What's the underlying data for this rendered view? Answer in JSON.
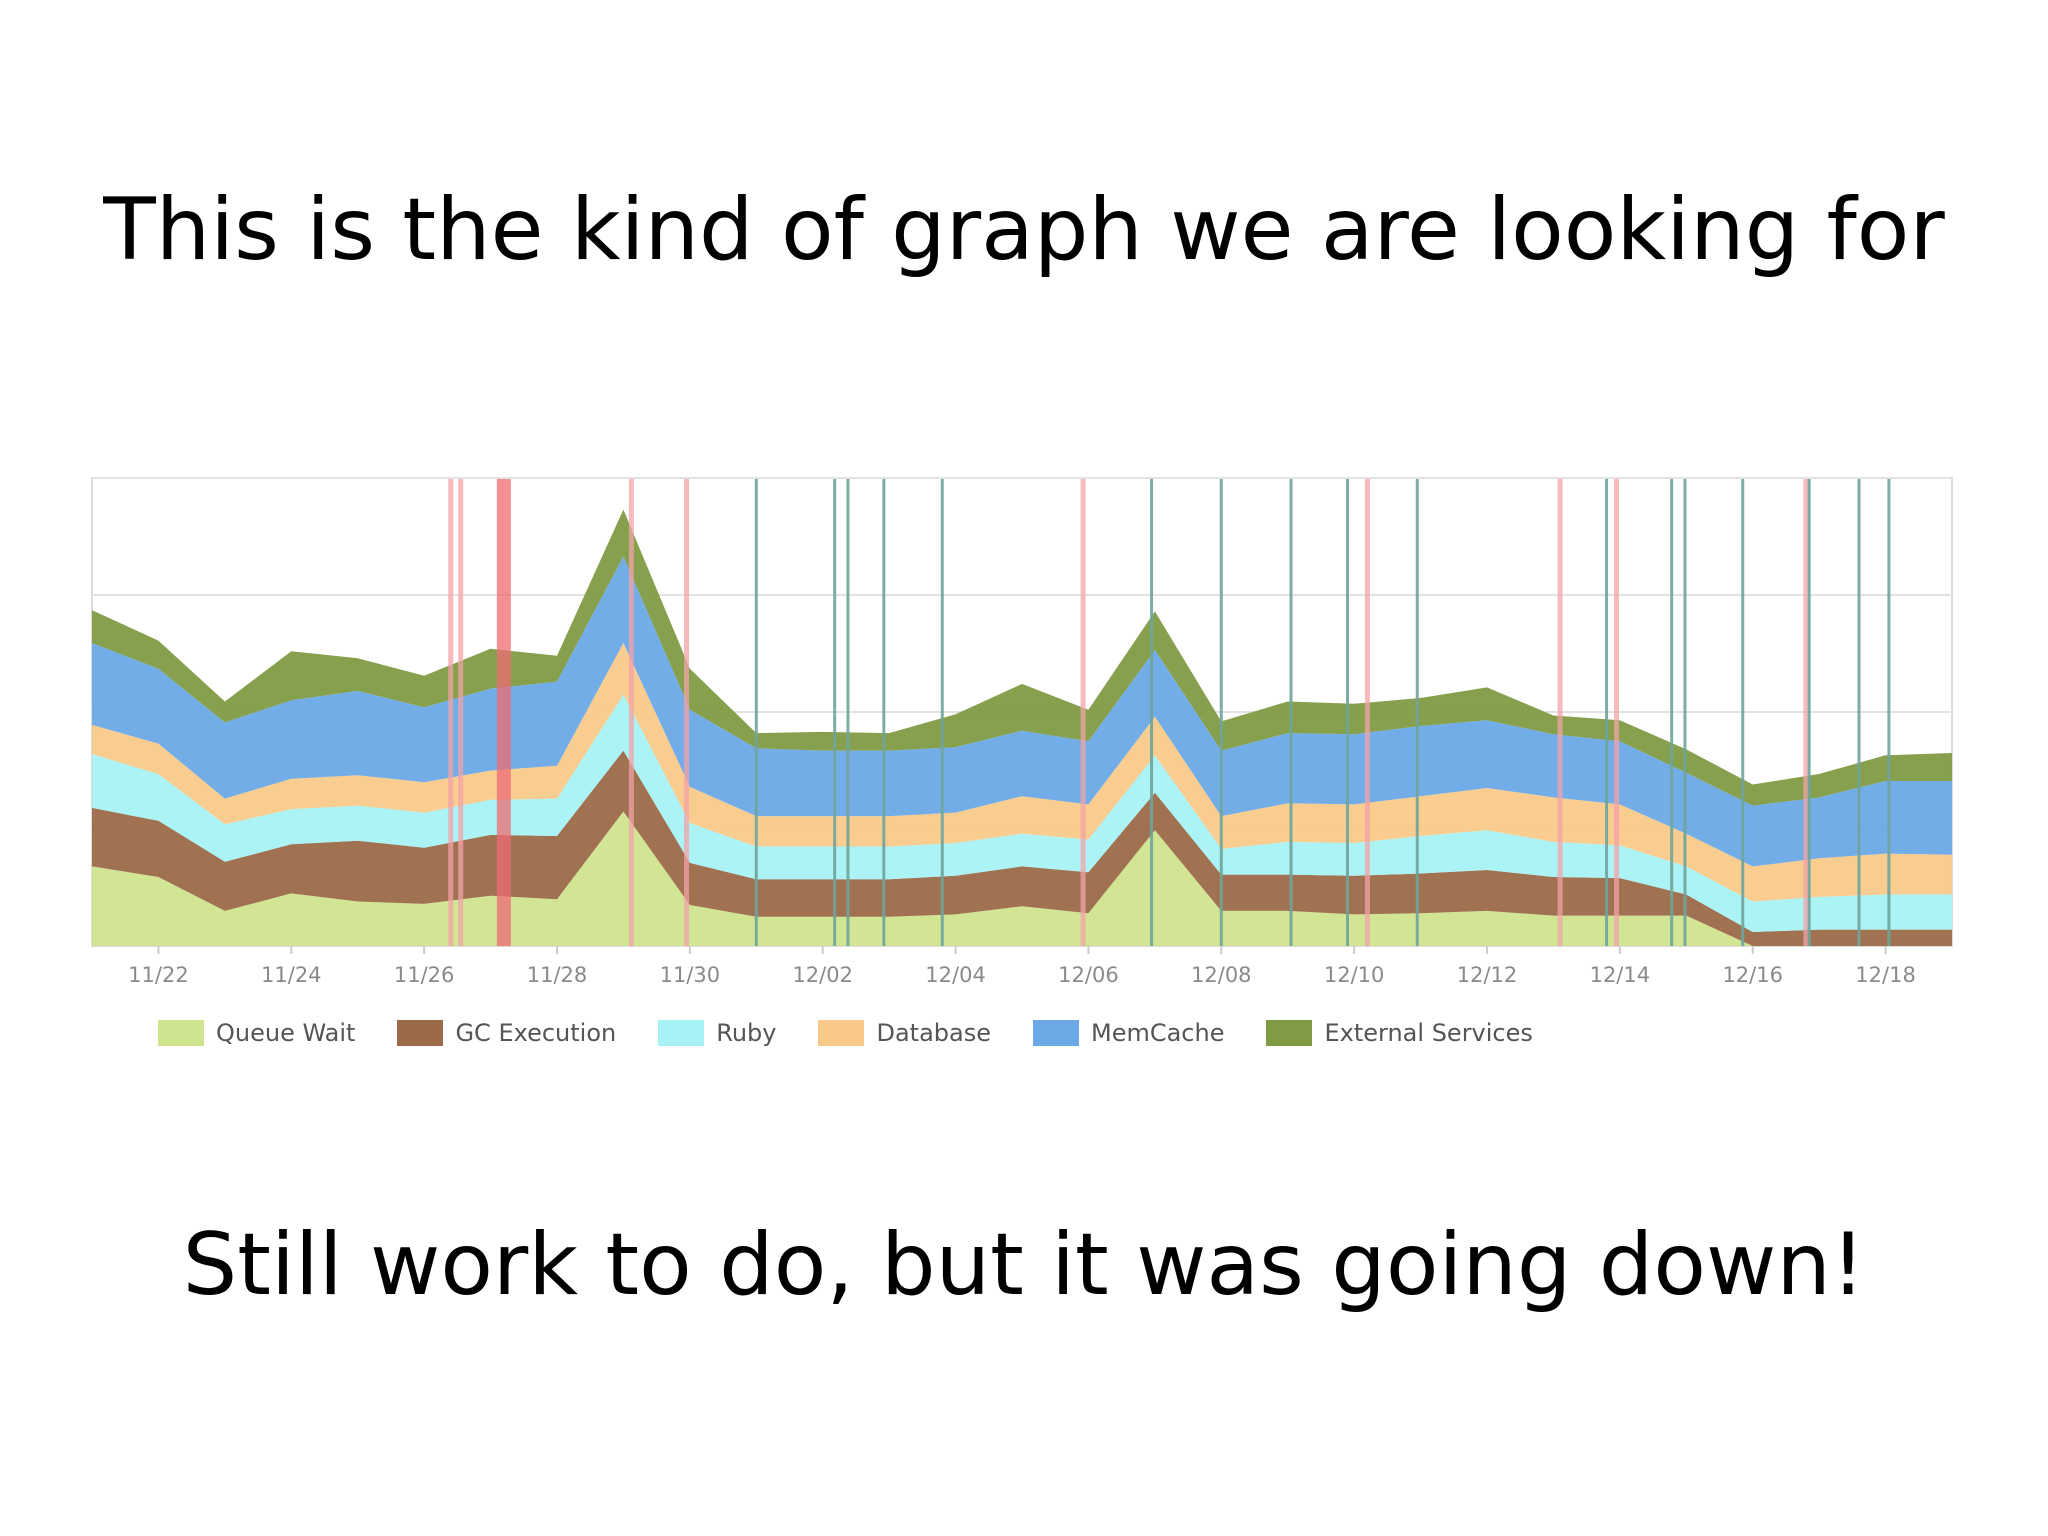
{
  "slide": {
    "title": "This is the kind of graph we are looking for",
    "caption": "Still work to do, but it was going down!"
  },
  "chart_data": {
    "type": "area",
    "stacked": true,
    "x": [
      "11/21",
      "11/22",
      "11/23",
      "11/24",
      "11/25",
      "11/26",
      "11/27",
      "11/28",
      "11/29",
      "11/30",
      "12/01",
      "12/02",
      "12/03",
      "12/04",
      "12/05",
      "12/06",
      "12/07",
      "12/08",
      "12/09",
      "12/10",
      "12/11",
      "12/12",
      "12/13",
      "12/14",
      "12/15",
      "12/16",
      "12/17",
      "12/18",
      "12/19"
    ],
    "x_tick_labels": [
      "11/22",
      "11/24",
      "11/26",
      "11/28",
      "11/30",
      "12/02",
      "12/04",
      "12/06",
      "12/08",
      "12/10",
      "12/12",
      "12/14",
      "12/16",
      "12/18"
    ],
    "y_grid_values": [
      100,
      200,
      300,
      400
    ],
    "ylim": [
      0,
      400
    ],
    "grid": true,
    "legend_position": "bottom-left",
    "series": [
      {
        "name": "Queue Wait",
        "color": "#cfe48f",
        "values": [
          68,
          59,
          30,
          45,
          38,
          36,
          43,
          40,
          115,
          35,
          25,
          25,
          25,
          27,
          34,
          28,
          99,
          30,
          30,
          27,
          28,
          30,
          26,
          26,
          26,
          0,
          0,
          0,
          0
        ]
      },
      {
        "name": "GC Execution",
        "color": "#9b6a48",
        "values": [
          50,
          48,
          42,
          42,
          52,
          48,
          52,
          54,
          52,
          36,
          32,
          32,
          32,
          33,
          34,
          35,
          32,
          31,
          31,
          33,
          34,
          35,
          33,
          32,
          18,
          12,
          14,
          14,
          14
        ]
      },
      {
        "name": "Ruby",
        "color": "#a6f2f4",
        "values": [
          46,
          40,
          32,
          30,
          30,
          30,
          30,
          32,
          48,
          34,
          28,
          28,
          28,
          28,
          28,
          28,
          32,
          22,
          28,
          28,
          32,
          34,
          30,
          28,
          24,
          26,
          28,
          30,
          30
        ]
      },
      {
        "name": "Database",
        "color": "#f9c98a",
        "values": [
          25,
          26,
          22,
          26,
          26,
          26,
          25,
          28,
          44,
          31,
          26,
          26,
          26,
          26,
          32,
          30,
          33,
          28,
          33,
          33,
          34,
          36,
          38,
          35,
          28,
          30,
          33,
          35,
          34
        ]
      },
      {
        "name": "MemCache",
        "color": "#6aa9e6",
        "values": [
          70,
          64,
          65,
          67,
          72,
          64,
          70,
          72,
          74,
          66,
          58,
          56,
          56,
          56,
          56,
          54,
          57,
          56,
          60,
          60,
          60,
          58,
          54,
          54,
          52,
          52,
          52,
          62,
          63
        ]
      },
      {
        "name": "External Services",
        "color": "#7f9b43",
        "values": [
          28,
          24,
          18,
          42,
          28,
          27,
          34,
          22,
          40,
          35,
          13,
          16,
          15,
          28,
          40,
          27,
          33,
          25,
          27,
          26,
          24,
          28,
          16,
          18,
          20,
          18,
          20,
          22,
          24
        ]
      }
    ],
    "event_markers": [
      {
        "x": 5.4,
        "kind": "red"
      },
      {
        "x": 5.55,
        "kind": "red"
      },
      {
        "x": 6.2,
        "kind": "red-bold"
      },
      {
        "x": 8.12,
        "kind": "red"
      },
      {
        "x": 8.95,
        "kind": "red"
      },
      {
        "x": 10.0,
        "kind": "teal"
      },
      {
        "x": 11.18,
        "kind": "teal"
      },
      {
        "x": 11.38,
        "kind": "teal"
      },
      {
        "x": 11.92,
        "kind": "teal"
      },
      {
        "x": 12.8,
        "kind": "teal"
      },
      {
        "x": 14.92,
        "kind": "red"
      },
      {
        "x": 15.95,
        "kind": "teal"
      },
      {
        "x": 17.0,
        "kind": "teal"
      },
      {
        "x": 18.05,
        "kind": "teal"
      },
      {
        "x": 18.9,
        "kind": "teal"
      },
      {
        "x": 19.2,
        "kind": "red"
      },
      {
        "x": 19.95,
        "kind": "teal"
      },
      {
        "x": 22.1,
        "kind": "red"
      },
      {
        "x": 22.8,
        "kind": "teal"
      },
      {
        "x": 22.95,
        "kind": "red"
      },
      {
        "x": 23.78,
        "kind": "teal"
      },
      {
        "x": 23.98,
        "kind": "teal"
      },
      {
        "x": 24.85,
        "kind": "teal"
      },
      {
        "x": 25.8,
        "kind": "red"
      },
      {
        "x": 25.85,
        "kind": "teal"
      },
      {
        "x": 26.6,
        "kind": "teal"
      },
      {
        "x": 27.05,
        "kind": "teal"
      }
    ],
    "marker_colors": {
      "red": "#f4a3a8",
      "red-bold": "#ee6b74",
      "teal": "#6fa59c"
    }
  }
}
